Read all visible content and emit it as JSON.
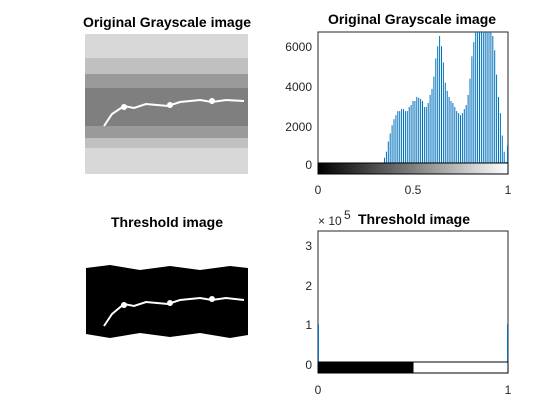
{
  "chart_data": [
    {
      "type": "image",
      "title": "Original Grayscale image",
      "colors": {
        "background": "#d8d8d8",
        "band": "#8a8a8a",
        "core": "#6e6e6e",
        "streak": "#ffffff"
      }
    },
    {
      "type": "bar",
      "title": "Original Grayscale image",
      "xlim": [
        0,
        1
      ],
      "ylim": [
        -300,
        6700
      ],
      "x_ticks": [
        "0",
        "0.5",
        "1"
      ],
      "y_ticks": [
        "0",
        "2000",
        "4000",
        "6000"
      ],
      "bar_color": "#0072bd",
      "colorbar": "gray",
      "x": [
        0.33,
        0.35,
        0.36,
        0.37,
        0.38,
        0.39,
        0.4,
        0.41,
        0.42,
        0.43,
        0.44,
        0.45,
        0.46,
        0.47,
        0.48,
        0.49,
        0.5,
        0.51,
        0.52,
        0.53,
        0.54,
        0.55,
        0.56,
        0.57,
        0.58,
        0.59,
        0.6,
        0.61,
        0.62,
        0.63,
        0.64,
        0.65,
        0.66,
        0.67,
        0.68,
        0.69,
        0.7,
        0.71,
        0.72,
        0.73,
        0.74,
        0.75,
        0.76,
        0.77,
        0.78,
        0.79,
        0.8,
        0.81,
        0.82,
        0.83,
        0.84,
        0.85,
        0.86,
        0.87,
        0.88,
        0.89,
        0.9,
        0.91,
        0.92,
        0.93,
        0.94,
        0.95,
        0.96,
        0.97,
        0.98,
        0.99,
        1.0
      ],
      "values": [
        200,
        500,
        800,
        1300,
        1700,
        2100,
        2400,
        2600,
        2800,
        2800,
        2900,
        2900,
        2800,
        2800,
        3000,
        3100,
        3300,
        3300,
        3500,
        3450,
        3400,
        3300,
        3000,
        3000,
        3200,
        3600,
        3900,
        4500,
        5400,
        6000,
        6500,
        6000,
        5200,
        4200,
        3800,
        3500,
        3300,
        3200,
        3000,
        2800,
        2700,
        2600,
        2700,
        2900,
        3100,
        3600,
        4400,
        5500,
        6200,
        6800,
        6800,
        6800,
        6800,
        6800,
        6800,
        6800,
        6800,
        6800,
        6500,
        5800,
        4600,
        3500,
        2700,
        1600,
        800,
        300,
        1100
      ]
    },
    {
      "type": "image",
      "title": "Threshold image",
      "colors": {
        "background": "#ffffff",
        "mask": "#000000",
        "streak": "#ffffff"
      }
    },
    {
      "type": "bar",
      "title": "Threshold image",
      "xlim": [
        0,
        1
      ],
      "ylim": [
        -0.25,
        3.4
      ],
      "exponent_label": "× 10",
      "exponent": "5",
      "x_ticks": [
        "0",
        "1"
      ],
      "y_ticks": [
        "0",
        "1",
        "2",
        "3"
      ],
      "bar_color": "#0072bd",
      "colorbar": "binary",
      "x": [
        0,
        1
      ],
      "values": [
        1.0,
        1.0
      ]
    }
  ]
}
